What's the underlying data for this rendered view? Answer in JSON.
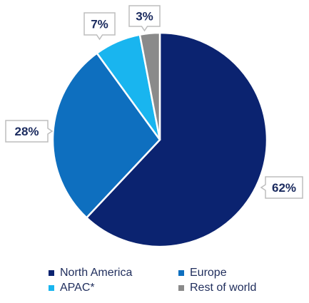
{
  "chart_data": {
    "type": "pie",
    "categories": [
      "North America",
      "Europe",
      "APAC*",
      "Rest of world"
    ],
    "values": [
      62,
      28,
      7,
      3
    ],
    "labels": [
      "62%",
      "28%",
      "7%",
      "3%"
    ],
    "colors": [
      "#0b2370",
      "#0e6fbf",
      "#19b5ef",
      "#8a8a8a"
    ],
    "legend_position": "bottom"
  }
}
